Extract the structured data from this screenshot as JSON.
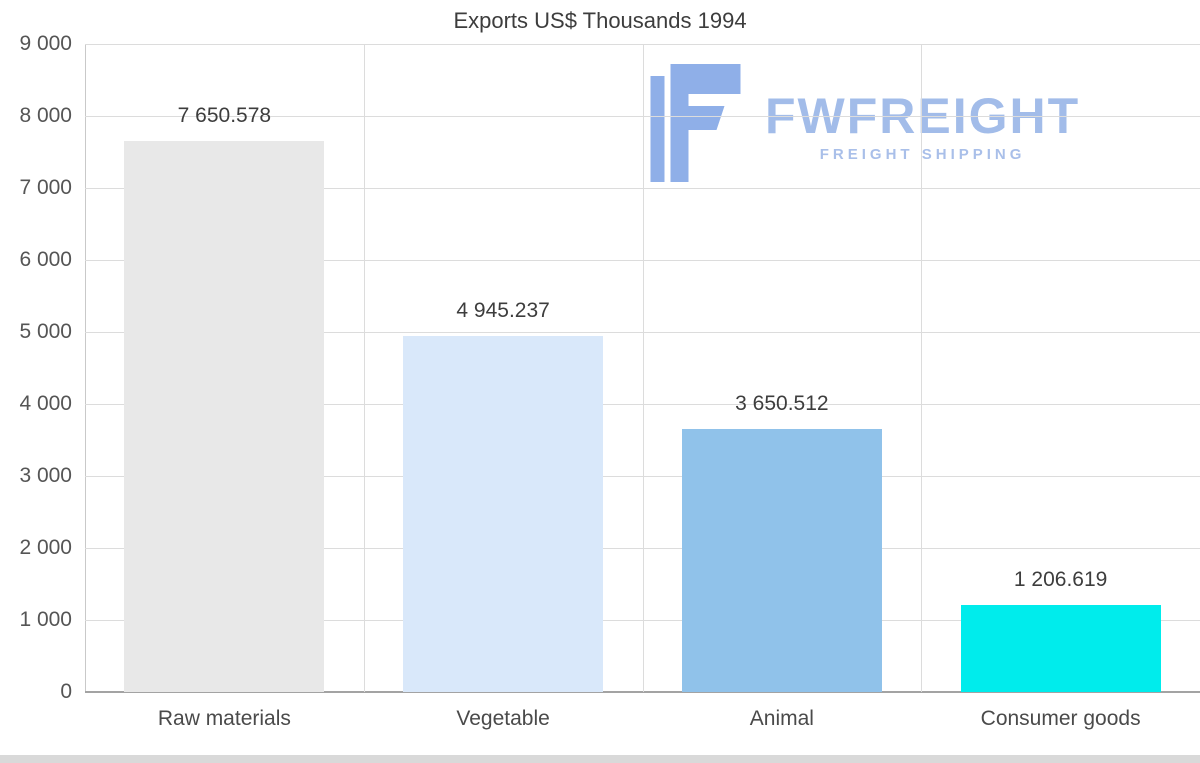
{
  "chart_data": {
    "type": "bar",
    "title": "Exports US$ Thousands 1994",
    "categories": [
      "Raw materials",
      "Vegetable",
      "Animal",
      "Consumer goods"
    ],
    "values": [
      7650.578,
      4945.237,
      3650.512,
      1206.619
    ],
    "value_labels": [
      "7 650.578",
      "4 945.237",
      "3 650.512",
      "1 206.619"
    ],
    "bar_colors": [
      "#e8e8e8",
      "#d9e8fa",
      "#90c2ea",
      "#00ecec"
    ],
    "xlabel": "",
    "ylabel": "",
    "ylim": [
      0,
      9000
    ],
    "ytick_step": 1000,
    "ytick_labels": [
      "0",
      "1 000",
      "2 000",
      "3 000",
      "4 000",
      "5 000",
      "6 000",
      "7 000",
      "8 000",
      "9 000"
    ],
    "grid": true,
    "legend": "none"
  },
  "watermark": {
    "name": "FWFREIGHT",
    "tagline": "FREIGHT SHIPPING",
    "mark_color": "#8fafe8",
    "text_color": "#a2bce9"
  }
}
